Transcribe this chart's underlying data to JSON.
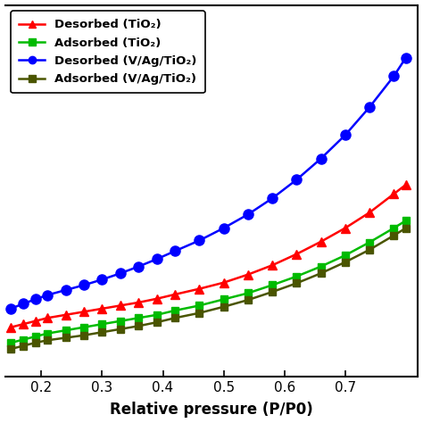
{
  "xlabel": "Relative pressure (P/P0)",
  "xlim": [
    0.14,
    0.82
  ],
  "ylim": [
    0,
    60
  ],
  "xticks": [
    0.2,
    0.3,
    0.4,
    0.5,
    0.6,
    0.7
  ],
  "background_color": "#ffffff",
  "legend_entries": [
    {
      "label": "Desorbed (TiO₂)",
      "color": "#ff0000",
      "marker": "^"
    },
    {
      "label": "Adsorbed (TiO₂)",
      "color": "#00bb00",
      "marker": "s"
    },
    {
      "label": "Desorbed (V/Ag/TiO₂)",
      "color": "#0000ff",
      "marker": "o"
    },
    {
      "label": "Adsorbed (V/Ag/TiO₂)",
      "color": "#4a5500",
      "marker": "s"
    }
  ],
  "series": {
    "desorbed_tio2": {
      "x": [
        0.15,
        0.17,
        0.19,
        0.21,
        0.24,
        0.27,
        0.3,
        0.33,
        0.36,
        0.39,
        0.42,
        0.46,
        0.5,
        0.54,
        0.58,
        0.62,
        0.66,
        0.7,
        0.74,
        0.78,
        0.8
      ],
      "y": [
        8,
        8.5,
        9.0,
        9.5,
        10.0,
        10.5,
        11.0,
        11.5,
        12.0,
        12.6,
        13.3,
        14.2,
        15.2,
        16.5,
        18.0,
        19.8,
        21.8,
        24.0,
        26.5,
        29.5,
        31.0
      ],
      "color": "#ff0000",
      "marker": "^",
      "markersize": 7
    },
    "adsorbed_tio2": {
      "x": [
        0.15,
        0.17,
        0.19,
        0.21,
        0.24,
        0.27,
        0.3,
        0.33,
        0.36,
        0.39,
        0.42,
        0.46,
        0.5,
        0.54,
        0.58,
        0.62,
        0.66,
        0.7,
        0.74,
        0.78,
        0.8
      ],
      "y": [
        5.5,
        6.0,
        6.5,
        7.0,
        7.5,
        8.0,
        8.5,
        9.0,
        9.5,
        10.0,
        10.7,
        11.5,
        12.5,
        13.5,
        14.8,
        16.2,
        17.8,
        19.6,
        21.7,
        24.0,
        25.2
      ],
      "color": "#00bb00",
      "marker": "s",
      "markersize": 6
    },
    "desorbed_vagti": {
      "x": [
        0.15,
        0.17,
        0.19,
        0.21,
        0.24,
        0.27,
        0.3,
        0.33,
        0.36,
        0.39,
        0.42,
        0.46,
        0.5,
        0.54,
        0.58,
        0.62,
        0.66,
        0.7,
        0.74,
        0.78,
        0.8
      ],
      "y": [
        11,
        11.8,
        12.5,
        13.2,
        14.0,
        14.8,
        15.7,
        16.7,
        17.8,
        19.0,
        20.3,
        22.0,
        24.0,
        26.2,
        28.8,
        31.8,
        35.2,
        39.0,
        43.5,
        48.5,
        51.5
      ],
      "color": "#0000ff",
      "marker": "o",
      "markersize": 8
    },
    "adsorbed_vagti": {
      "x": [
        0.15,
        0.17,
        0.19,
        0.21,
        0.24,
        0.27,
        0.3,
        0.33,
        0.36,
        0.39,
        0.42,
        0.46,
        0.5,
        0.54,
        0.58,
        0.62,
        0.66,
        0.7,
        0.74,
        0.78,
        0.8
      ],
      "y": [
        4.5,
        5.0,
        5.5,
        5.9,
        6.3,
        6.7,
        7.2,
        7.7,
        8.2,
        8.8,
        9.5,
        10.3,
        11.3,
        12.4,
        13.7,
        15.1,
        16.7,
        18.5,
        20.5,
        22.8,
        24.0
      ],
      "color": "#4a5500",
      "marker": "s",
      "markersize": 6
    }
  }
}
